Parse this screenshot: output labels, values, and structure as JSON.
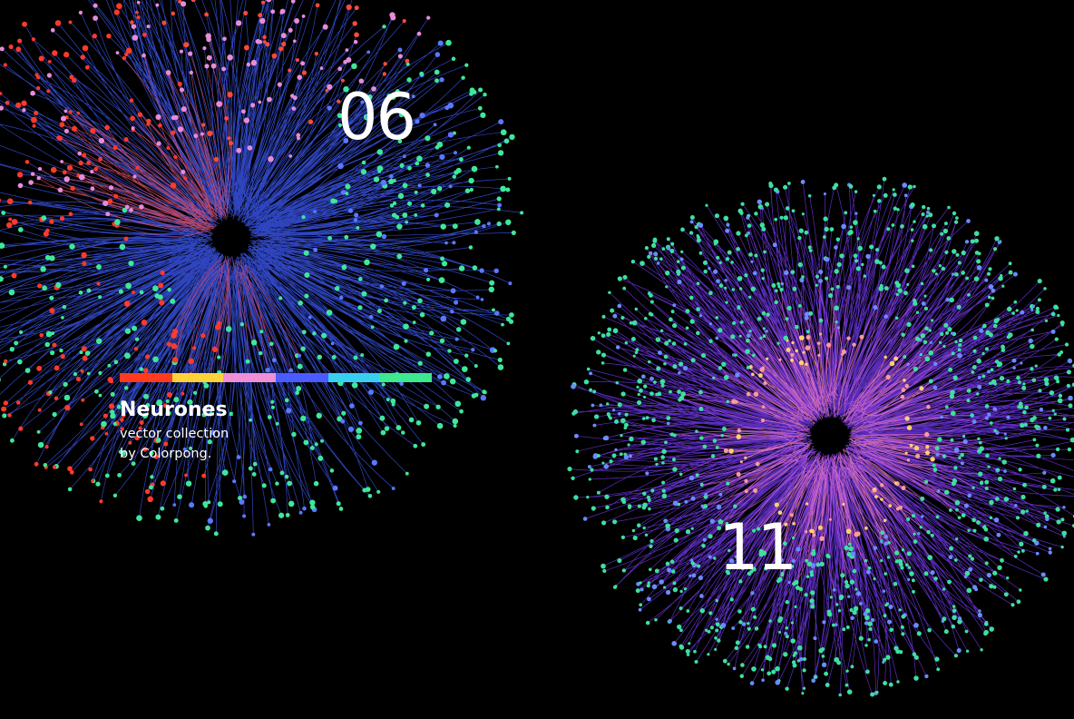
{
  "artwork": {
    "number_a": "06",
    "number_b": "11",
    "title": "Neurones",
    "title_dot": ".",
    "subtitle_line1": "vector collection",
    "subtitle_line2": "by Colorpong."
  }
}
